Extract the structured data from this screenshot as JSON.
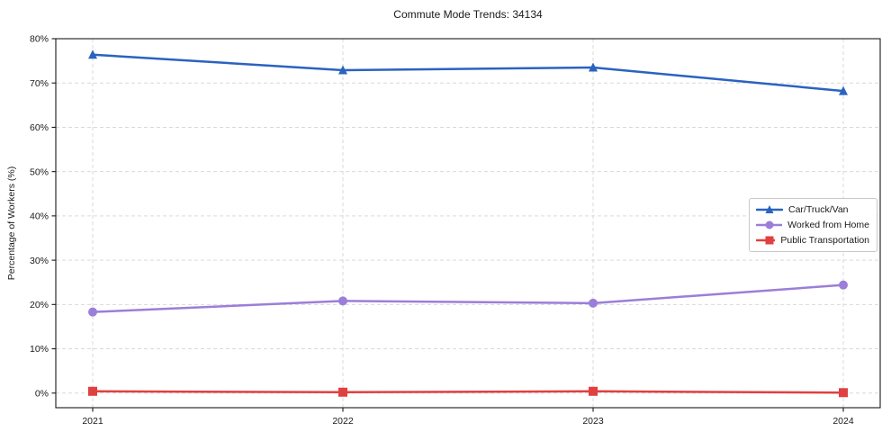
{
  "chart_data": {
    "type": "line",
    "title": "Commute Mode Trends: 34134",
    "xlabel": "",
    "ylabel": "Percentage of Workers (%)",
    "x": [
      2021,
      2022,
      2023,
      2024
    ],
    "x_tick_labels": [
      "2021",
      "2022",
      "2023",
      "2024"
    ],
    "y_ticks": [
      0,
      10,
      20,
      30,
      40,
      50,
      60,
      70,
      80
    ],
    "y_tick_labels": [
      "0%",
      "10%",
      "20%",
      "30%",
      "40%",
      "50%",
      "60%",
      "70%",
      "80%"
    ],
    "ylim": [
      -3.3,
      80
    ],
    "grid": true,
    "grid_style": "dashed",
    "legend_position": "center-right",
    "series": [
      {
        "name": "Car/Truck/Van",
        "color": "#2a63c0",
        "marker": "triangle",
        "values": [
          76.4,
          72.9,
          73.5,
          68.2
        ]
      },
      {
        "name": "Worked from Home",
        "color": "#9b7ed9",
        "marker": "circle",
        "values": [
          18.3,
          20.8,
          20.3,
          24.4
        ]
      },
      {
        "name": "Public Transportation",
        "color": "#e04040",
        "marker": "square",
        "values": [
          0.4,
          0.2,
          0.4,
          0.1
        ]
      }
    ]
  }
}
